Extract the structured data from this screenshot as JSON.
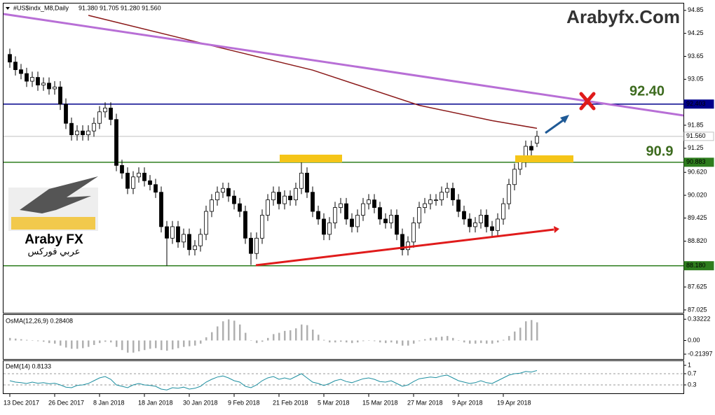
{
  "chart_data": [
    {
      "type": "candlestick",
      "title": "#US$indx_M8,Daily",
      "ohlc_label": "91.380 91.705 91.280 91.560",
      "categories": [
        "13 Dec 2017",
        null,
        null,
        null,
        null,
        null,
        null,
        null,
        "26 Dec 2017",
        null,
        null,
        null,
        null,
        null,
        null,
        null,
        "8 Jan 2018",
        null,
        null,
        null,
        null,
        null,
        null,
        null,
        "18 Jan 2018",
        null,
        null,
        null,
        null,
        null,
        null,
        null,
        "30 Jan 2018",
        null,
        null,
        null,
        null,
        null,
        null,
        null,
        "9 Feb 2018",
        null,
        null,
        null,
        null,
        null,
        null,
        null,
        "21 Feb 2018",
        null,
        null,
        null,
        null,
        null,
        null,
        null,
        "5 Mar 2018",
        null,
        null,
        null,
        null,
        null,
        null,
        null,
        "15 Mar 2018",
        null,
        null,
        null,
        null,
        null,
        null,
        null,
        "27 Mar 2018",
        null,
        null,
        null,
        null,
        null,
        null,
        null,
        "9 Apr 2018",
        null,
        null,
        null,
        null,
        null,
        null,
        null,
        "19 Apr 2018",
        null,
        null,
        null,
        null,
        null,
        null
      ],
      "open": [
        93.7,
        93.5,
        93.3,
        93.2,
        93.0,
        93.1,
        92.9,
        92.95,
        92.8,
        92.85,
        92.4,
        91.9,
        91.6,
        91.7,
        91.6,
        91.7,
        91.9,
        92.2,
        92.3,
        92.0,
        90.8,
        90.6,
        90.2,
        90.5,
        90.6,
        90.4,
        90.3,
        90.1,
        89.2,
        88.9,
        89.2,
        88.8,
        89.0,
        88.6,
        88.7,
        89.0,
        89.6,
        89.9,
        90.1,
        90.2,
        90.0,
        89.8,
        89.6,
        88.9,
        88.5,
        88.9,
        89.5,
        89.9,
        90.1,
        89.8,
        90.0,
        89.9,
        90.2,
        90.6,
        90.1,
        89.6,
        89.4,
        89.0,
        89.3,
        89.7,
        89.8,
        89.4,
        89.2,
        89.5,
        89.8,
        89.9,
        89.7,
        89.4,
        89.3,
        89.5,
        89.0,
        88.6,
        88.8,
        89.3,
        89.7,
        89.8,
        89.9,
        89.9,
        90.1,
        90.2,
        89.9,
        89.6,
        89.4,
        89.2,
        89.3,
        89.5,
        89.2,
        89.1,
        89.4,
        89.8,
        90.3,
        90.7,
        90.9,
        91.3,
        91.38
      ],
      "high": [
        93.85,
        93.65,
        93.45,
        93.35,
        93.25,
        93.25,
        93.1,
        93.1,
        93.0,
        93.0,
        92.55,
        92.05,
        91.85,
        91.85,
        91.85,
        92.05,
        92.35,
        92.45,
        92.45,
        92.15,
        90.95,
        90.75,
        90.65,
        90.75,
        90.75,
        90.55,
        90.45,
        90.25,
        89.35,
        89.35,
        89.35,
        89.15,
        89.15,
        88.85,
        89.15,
        89.75,
        90.05,
        90.25,
        90.35,
        90.35,
        90.15,
        89.95,
        89.75,
        89.05,
        89.05,
        89.65,
        90.05,
        90.25,
        90.25,
        90.15,
        90.15,
        90.35,
        90.88,
        90.75,
        90.25,
        89.75,
        89.55,
        89.45,
        89.85,
        89.95,
        89.95,
        89.55,
        89.65,
        89.95,
        90.05,
        90.05,
        89.85,
        89.55,
        89.65,
        89.65,
        89.15,
        88.95,
        89.45,
        89.85,
        89.95,
        90.05,
        90.05,
        90.25,
        90.35,
        90.35,
        90.05,
        89.75,
        89.55,
        89.45,
        89.65,
        89.65,
        89.35,
        89.55,
        89.95,
        90.45,
        90.85,
        91.05,
        91.45,
        91.45,
        91.705
      ],
      "low": [
        93.35,
        93.15,
        93.05,
        92.85,
        92.85,
        92.75,
        92.75,
        92.65,
        92.65,
        92.25,
        91.75,
        91.45,
        91.45,
        91.45,
        91.45,
        91.55,
        91.75,
        92.05,
        91.85,
        90.65,
        90.45,
        90.05,
        90.05,
        90.35,
        90.25,
        90.15,
        89.95,
        89.05,
        88.18,
        88.75,
        88.65,
        88.65,
        88.45,
        88.45,
        88.55,
        88.85,
        89.45,
        89.75,
        89.95,
        89.85,
        89.65,
        89.45,
        88.75,
        88.2,
        88.35,
        88.75,
        89.35,
        89.75,
        89.65,
        89.65,
        89.75,
        89.75,
        90.05,
        89.95,
        89.45,
        89.25,
        88.85,
        88.85,
        89.15,
        89.55,
        89.25,
        89.05,
        89.05,
        89.35,
        89.65,
        89.55,
        89.25,
        89.15,
        89.15,
        88.85,
        88.45,
        88.45,
        88.65,
        89.15,
        89.55,
        89.65,
        89.75,
        89.75,
        89.95,
        89.75,
        89.45,
        89.25,
        89.05,
        89.05,
        89.15,
        89.05,
        88.95,
        88.95,
        89.25,
        89.65,
        90.15,
        90.55,
        90.75,
        91.05,
        91.28
      ],
      "close": [
        93.5,
        93.3,
        93.2,
        93.0,
        93.1,
        92.9,
        92.95,
        92.8,
        92.85,
        92.4,
        91.9,
        91.6,
        91.7,
        91.6,
        91.7,
        91.9,
        92.2,
        92.3,
        92.0,
        90.8,
        90.6,
        90.2,
        90.5,
        90.6,
        90.4,
        90.3,
        90.1,
        89.2,
        88.9,
        89.2,
        88.8,
        89.0,
        88.6,
        88.7,
        89.0,
        89.6,
        89.9,
        90.1,
        90.2,
        90.0,
        89.8,
        89.6,
        88.9,
        88.5,
        88.9,
        89.5,
        89.9,
        90.1,
        89.8,
        90.0,
        89.9,
        90.2,
        90.6,
        90.1,
        89.6,
        89.4,
        89.0,
        89.3,
        89.7,
        89.8,
        89.4,
        89.2,
        89.5,
        89.8,
        89.9,
        89.7,
        89.4,
        89.3,
        89.5,
        89.0,
        88.6,
        88.8,
        89.3,
        89.7,
        89.8,
        89.9,
        89.9,
        90.1,
        90.2,
        89.9,
        89.6,
        89.4,
        89.2,
        89.3,
        89.5,
        89.2,
        89.1,
        89.4,
        89.8,
        90.3,
        90.7,
        90.9,
        91.3,
        91.2,
        91.56
      ],
      "moving_average": {
        "color": "#8b1a1a",
        "x": [
          14,
          36,
          54,
          73,
          86,
          94
        ],
        "values": [
          94.72,
          93.93,
          93.29,
          92.37,
          91.97,
          91.77
        ]
      },
      "levels": [
        {
          "value": 92.403,
          "label": "92.403",
          "color": "#00008b",
          "text_color": "#ffffff"
        },
        {
          "value": 91.56,
          "label": "91.560",
          "color": "#c0c0c0",
          "text_color": "#000000"
        },
        {
          "value": 90.883,
          "label": "90.883",
          "color": "#2e7d1e",
          "text_color": "#ffffff"
        },
        {
          "value": 88.18,
          "label": "88.180",
          "color": "#2e7d1e",
          "text_color": "#ffffff"
        }
      ],
      "ylim": [
        86.95,
        95.03
      ],
      "yticks": [
        94.85,
        94.25,
        93.65,
        93.05,
        91.85,
        91.25,
        {
          "value": 90.62,
          "label": "90.620"
        },
        {
          "value": 90.02,
          "label": "90.020"
        },
        89.425,
        {
          "value": 88.82,
          "label": "88.820"
        },
        87.625,
        87.025
      ],
      "annotations": {
        "site": "Arabyfx.Com",
        "target": "92.40",
        "support": "90.9",
        "logo": "Araby FX",
        "logo_arabic": "عربي فوركس"
      }
    },
    {
      "type": "bar",
      "title": "OsMA(12,26,9) 0.28408",
      "color": "#b0b0b0",
      "values": [
        0.04,
        0.03,
        0.02,
        0.01,
        0.0,
        -0.01,
        -0.02,
        -0.04,
        -0.05,
        -0.08,
        -0.11,
        -0.13,
        -0.13,
        -0.12,
        -0.1,
        -0.07,
        -0.04,
        -0.02,
        -0.03,
        -0.1,
        -0.15,
        -0.19,
        -0.19,
        -0.17,
        -0.15,
        -0.13,
        -0.12,
        -0.15,
        -0.16,
        -0.14,
        -0.12,
        -0.1,
        -0.09,
        -0.08,
        -0.05,
        0.05,
        0.13,
        0.22,
        0.3,
        0.33,
        0.31,
        0.25,
        0.12,
        0.0,
        -0.04,
        -0.02,
        0.04,
        0.1,
        0.12,
        0.15,
        0.16,
        0.19,
        0.25,
        0.24,
        0.17,
        0.09,
        0.01,
        -0.03,
        -0.03,
        -0.02,
        -0.03,
        -0.04,
        -0.03,
        -0.01,
        0.0,
        -0.01,
        -0.03,
        -0.04,
        -0.03,
        -0.05,
        -0.08,
        -0.08,
        -0.05,
        -0.01,
        0.02,
        0.04,
        0.05,
        0.06,
        0.07,
        0.04,
        0.0,
        -0.03,
        -0.05,
        -0.05,
        -0.04,
        -0.05,
        -0.05,
        -0.03,
        0.01,
        0.07,
        0.14,
        0.2,
        0.3,
        0.32,
        0.28408
      ],
      "ylim": [
        -0.29,
        0.4
      ],
      "yticks": [
        0.33222,
        {
          "value": 0,
          "label": "0.00"
        },
        -0.21397
      ]
    },
    {
      "type": "line",
      "title": "DeM(14) 0.8133",
      "color": "#1e8fa0",
      "values": [
        0.45,
        0.4,
        0.38,
        0.35,
        0.4,
        0.36,
        0.38,
        0.34,
        0.36,
        0.3,
        0.22,
        0.2,
        0.28,
        0.3,
        0.35,
        0.45,
        0.55,
        0.6,
        0.5,
        0.3,
        0.25,
        0.2,
        0.3,
        0.35,
        0.3,
        0.28,
        0.25,
        0.15,
        0.12,
        0.2,
        0.18,
        0.22,
        0.15,
        0.18,
        0.25,
        0.4,
        0.5,
        0.58,
        0.62,
        0.55,
        0.45,
        0.4,
        0.25,
        0.2,
        0.3,
        0.45,
        0.55,
        0.6,
        0.5,
        0.55,
        0.5,
        0.6,
        0.7,
        0.55,
        0.4,
        0.35,
        0.28,
        0.35,
        0.45,
        0.5,
        0.42,
        0.38,
        0.45,
        0.52,
        0.55,
        0.5,
        0.42,
        0.4,
        0.45,
        0.35,
        0.25,
        0.3,
        0.42,
        0.52,
        0.55,
        0.58,
        0.56,
        0.62,
        0.65,
        0.55,
        0.45,
        0.4,
        0.35,
        0.38,
        0.45,
        0.38,
        0.35,
        0.45,
        0.55,
        0.65,
        0.7,
        0.72,
        0.78,
        0.76,
        0.8133
      ],
      "ylim": [
        0,
        1.15
      ],
      "yticks": [
        1,
        0.7,
        0.3
      ],
      "dashed_levels": [
        0.7,
        0.3
      ]
    }
  ]
}
